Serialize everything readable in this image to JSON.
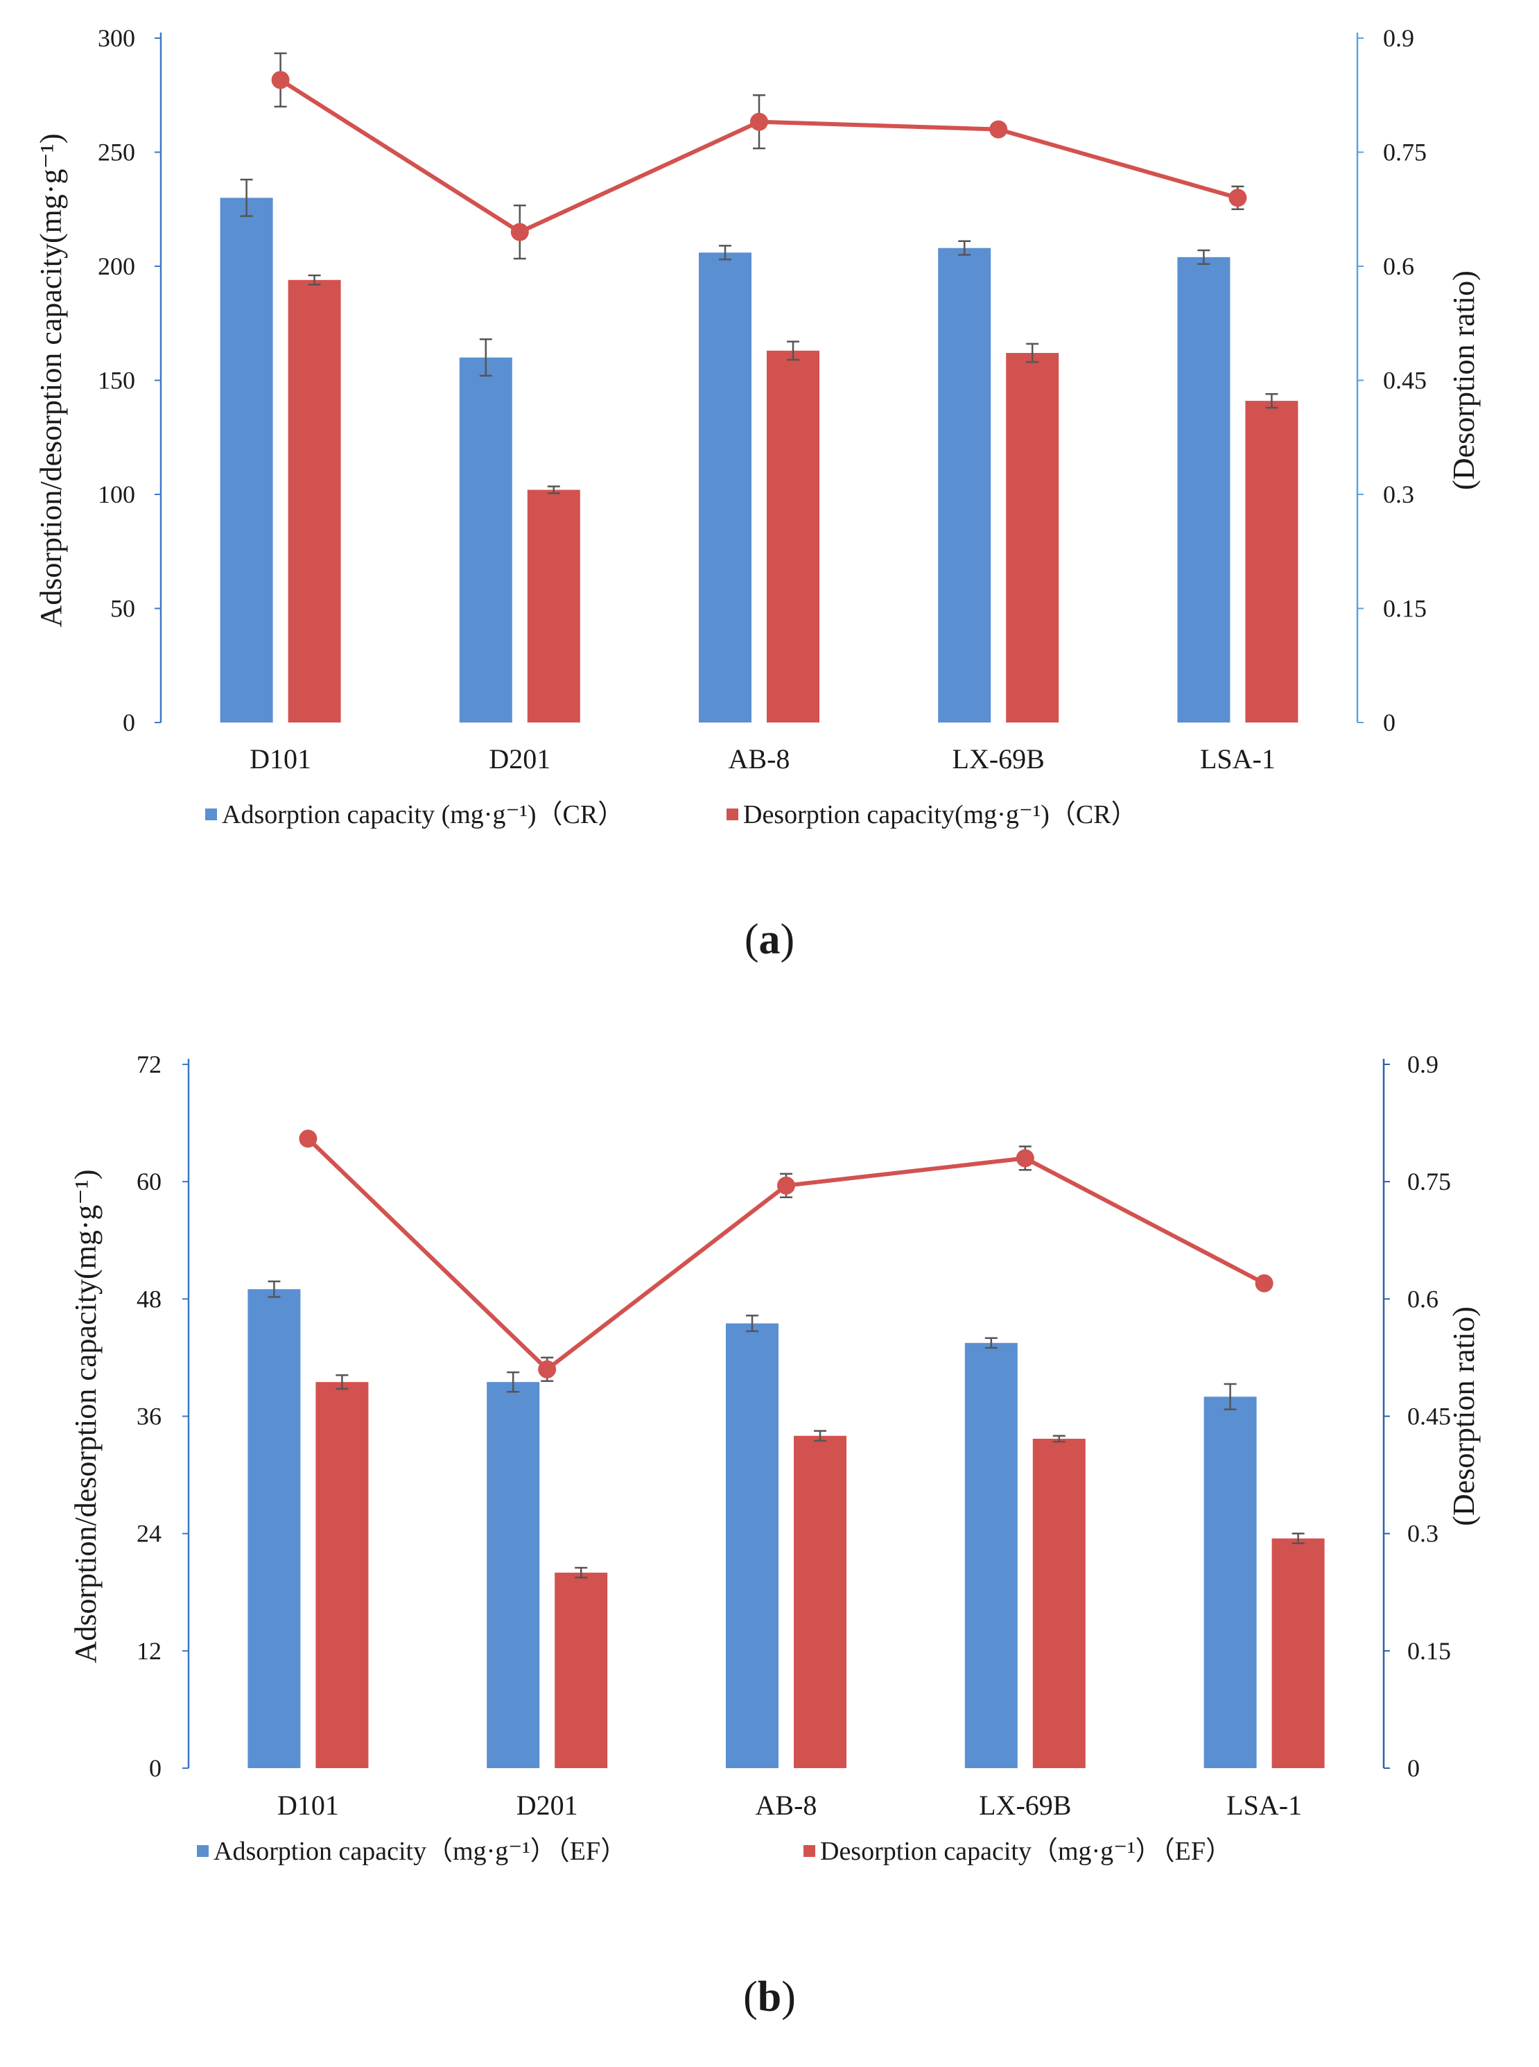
{
  "colors": {
    "adsorption": "#5a8fd2",
    "desorption": "#d2524f",
    "line": "#d2524f",
    "left_axis": "#3a78c6",
    "right_axis_a": "#5aa2e0",
    "right_axis_b": "#2e5fa8",
    "error_bar": "#555555"
  },
  "chart_data": [
    {
      "type": "bar",
      "panel_label": "a",
      "categories": [
        "D101",
        "D201",
        "AB-8",
        "LX-69B",
        "LSA-1"
      ],
      "series": [
        {
          "name": "Adsorption capacity (mg·g⁻¹)（CR）",
          "kind": "bar",
          "values": [
            230,
            160,
            206,
            208,
            204
          ],
          "errors": [
            8,
            8,
            3,
            3,
            3
          ]
        },
        {
          "name": "Desorption capacity(mg·g⁻¹)（CR）",
          "kind": "bar",
          "values": [
            194,
            102,
            163,
            162,
            141
          ],
          "errors": [
            2,
            1.5,
            4,
            4,
            3
          ]
        },
        {
          "name": "Desorption ratio",
          "kind": "line",
          "axis": "right",
          "values": [
            0.845,
            0.645,
            0.79,
            0.78,
            0.69
          ],
          "errors": [
            0.035,
            0.035,
            0.035,
            0.005,
            0.015
          ]
        }
      ],
      "ylabel": "Adsorption/desorption capacity(mg·g⁻¹)",
      "ylabel_right": "(Desorption ratio)",
      "ylim": [
        0,
        300
      ],
      "yticks": [
        "0",
        "50",
        "100",
        "150",
        "200",
        "250",
        "300"
      ],
      "ylim_right": [
        0,
        0.9
      ],
      "yticks_right": [
        "0",
        "0.15",
        "0.3",
        "0.45",
        "0.6",
        "0.75",
        "0.9"
      ],
      "legend_position": "bottom"
    },
    {
      "type": "bar",
      "panel_label": "b",
      "categories": [
        "D101",
        "D201",
        "AB-8",
        "LX-69B",
        "LSA-1"
      ],
      "series": [
        {
          "name": "Adsorption capacity（mg·g⁻¹）（EF）",
          "kind": "bar",
          "values": [
            49,
            39.5,
            45.5,
            43.5,
            38
          ],
          "errors": [
            0.8,
            1.0,
            0.8,
            0.5,
            1.3
          ]
        },
        {
          "name": "Desorption capacity（mg·g⁻¹）（EF）",
          "kind": "bar",
          "values": [
            39.5,
            20,
            34,
            33.7,
            23.5
          ],
          "errors": [
            0.7,
            0.5,
            0.5,
            0.3,
            0.5
          ]
        },
        {
          "name": "Desorption ratio",
          "kind": "line",
          "axis": "right",
          "values": [
            0.805,
            0.51,
            0.745,
            0.78,
            0.62
          ],
          "errors": [
            0.0,
            0.015,
            0.015,
            0.015,
            0.0
          ]
        }
      ],
      "ylabel": "Adsorption/desorption capacity(mg·g⁻¹)",
      "ylabel_right": "(Desorption ratio)",
      "ylim": [
        0,
        72
      ],
      "yticks": [
        "0",
        "12",
        "24",
        "36",
        "48",
        "60",
        "72"
      ],
      "ylim_right": [
        0,
        0.9
      ],
      "yticks_right": [
        "0",
        "0.15",
        "0.3",
        "0.45",
        "0.6",
        "0.75",
        "0.9"
      ],
      "legend_position": "bottom"
    }
  ]
}
